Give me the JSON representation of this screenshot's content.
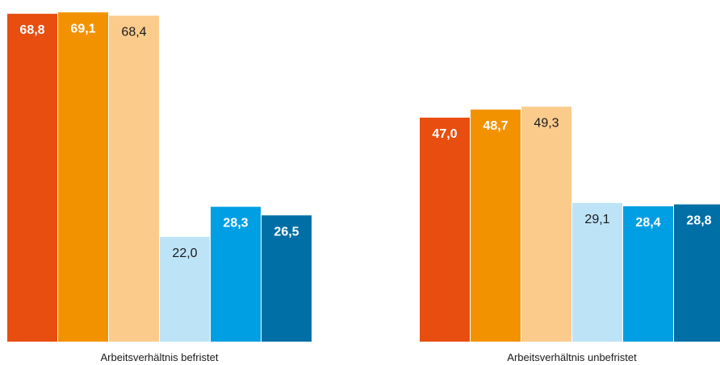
{
  "chart_data": {
    "type": "bar",
    "categories": [
      "Arbeitsverhältnis befristet",
      "Arbeitsverhältnis unbefristet"
    ],
    "series": [
      {
        "values": [
          68.8,
          47.0
        ],
        "labels": [
          "68,8",
          "47,0"
        ],
        "color": "#e84e10",
        "label_color": "#ffffff",
        "label_bold": true
      },
      {
        "values": [
          69.1,
          48.7
        ],
        "labels": [
          "69,1",
          "48,7"
        ],
        "color": "#f39200",
        "label_color": "#ffffff",
        "label_bold": true
      },
      {
        "values": [
          68.4,
          49.3
        ],
        "labels": [
          "68,4",
          "49,3"
        ],
        "color": "#fbcb8c",
        "label_color": "#1a1a1a",
        "label_bold": false
      },
      {
        "values": [
          22.0,
          29.1
        ],
        "labels": [
          "22,0",
          "29,1"
        ],
        "color": "#bde3f7",
        "label_color": "#1a1a1a",
        "label_bold": false
      },
      {
        "values": [
          28.3,
          28.4
        ],
        "labels": [
          "28,3",
          "28,4"
        ],
        "color": "#009fe3",
        "label_color": "#ffffff",
        "label_bold": true
      },
      {
        "values": [
          26.5,
          28.8
        ],
        "labels": [
          "26,5",
          "28,8"
        ],
        "color": "#006fa5",
        "label_color": "#ffffff",
        "label_bold": true
      }
    ],
    "ylim": [
      0,
      70
    ],
    "grid": false,
    "legend": "none"
  }
}
